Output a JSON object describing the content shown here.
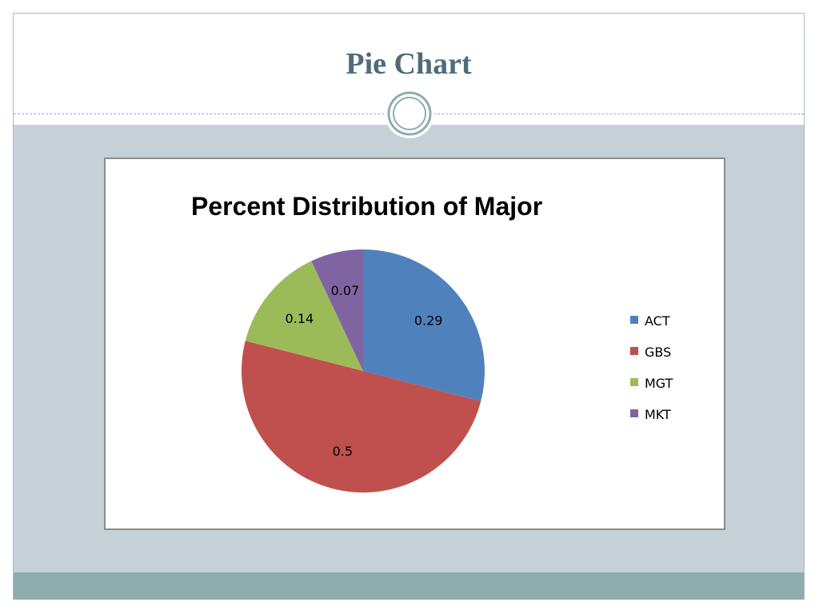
{
  "slide": {
    "title": "Pie Chart"
  },
  "colors": {
    "title_text": "#4f6b7a",
    "body_band": "#c5d1d7",
    "footer_band": "#8eadad"
  },
  "chart_data": {
    "type": "pie",
    "title": "Percent Distribution of Major",
    "categories": [
      "ACT",
      "GBS",
      "MGT",
      "MKT"
    ],
    "values": [
      0.29,
      0.5,
      0.14,
      0.07
    ],
    "data_labels": [
      "0.29",
      "0.5",
      "0.14",
      "0.07"
    ],
    "colors": [
      "#4f81bd",
      "#c0504d",
      "#9bbb59",
      "#8064a2"
    ],
    "legend_position": "right",
    "start_angle": "12 o'clock",
    "direction": "clockwise"
  }
}
